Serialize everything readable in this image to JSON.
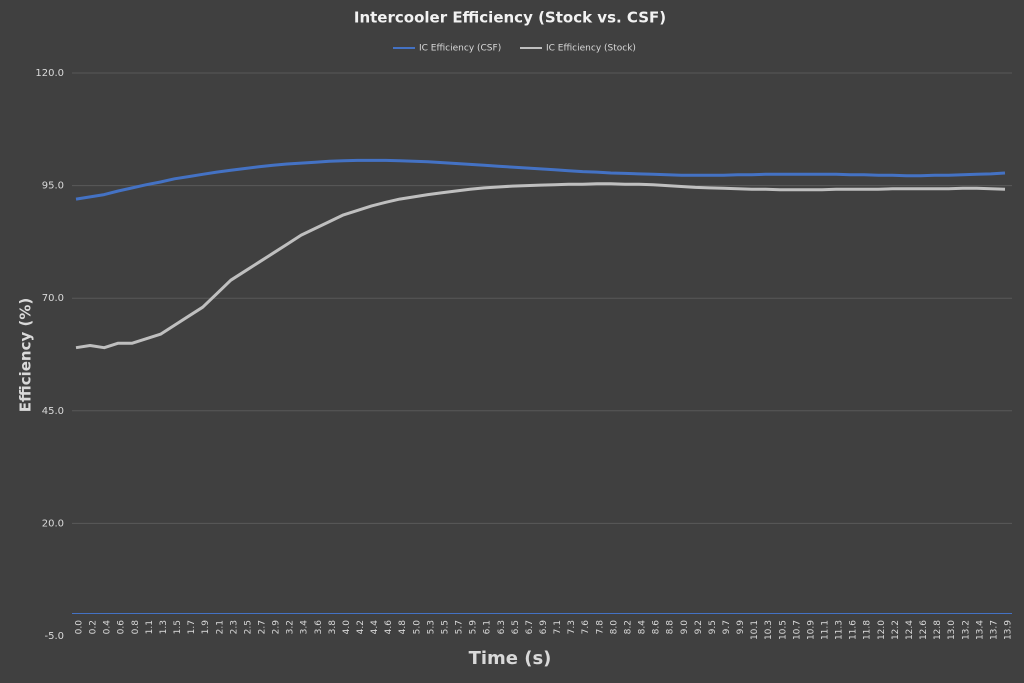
{
  "chart_data": {
    "type": "line",
    "title": "Intercooler Efficiency (Stock vs. CSF)",
    "x_label": "Time (s)",
    "y_label": "Efficiency (%)",
    "categories": [
      "0.0",
      "0.2",
      "0.4",
      "0.6",
      "0.8",
      "1.1",
      "1.3",
      "1.5",
      "1.7",
      "1.9",
      "2.1",
      "2.3",
      "2.5",
      "2.7",
      "2.9",
      "3.2",
      "3.4",
      "3.6",
      "3.8",
      "4.0",
      "4.2",
      "4.4",
      "4.6",
      "4.8",
      "5.0",
      "5.3",
      "5.5",
      "5.7",
      "5.9",
      "6.1",
      "6.3",
      "6.5",
      "6.7",
      "6.9",
      "7.1",
      "7.3",
      "7.6",
      "7.8",
      "8.0",
      "8.2",
      "8.4",
      "8.6",
      "8.8",
      "9.0",
      "9.2",
      "9.5",
      "9.7",
      "9.9",
      "10.1",
      "10.3",
      "10.5",
      "10.7",
      "10.9",
      "11.1",
      "11.3",
      "11.6",
      "11.8",
      "12.0",
      "12.2",
      "12.4",
      "12.6",
      "12.8",
      "13.0",
      "13.2",
      "13.4",
      "13.7",
      "13.9"
    ],
    "series": [
      {
        "name": "IC Efficiency (CSF)",
        "color": "#4472c4",
        "values": [
          92,
          92.5,
          93,
          93.8,
          94.5,
          95.2,
          95.8,
          96.5,
          97,
          97.5,
          98,
          98.4,
          98.8,
          99.2,
          99.5,
          99.8,
          100,
          100.2,
          100.4,
          100.5,
          100.6,
          100.6,
          100.6,
          100.5,
          100.4,
          100.3,
          100.1,
          99.9,
          99.7,
          99.5,
          99.3,
          99.1,
          98.9,
          98.7,
          98.5,
          98.3,
          98.1,
          98,
          97.8,
          97.7,
          97.6,
          97.5,
          97.4,
          97.3,
          97.3,
          97.3,
          97.3,
          97.4,
          97.4,
          97.5,
          97.5,
          97.5,
          97.5,
          97.5,
          97.5,
          97.4,
          97.4,
          97.3,
          97.3,
          97.2,
          97.2,
          97.3,
          97.3,
          97.4,
          97.5,
          97.6,
          97.8
        ]
      },
      {
        "name": "IC Efficiency (Stock)",
        "color": "#bfbfbf",
        "values": [
          59,
          59.5,
          59,
          60,
          60,
          61,
          62,
          64,
          66,
          68,
          71,
          74,
          76,
          78,
          80,
          82,
          84,
          85.5,
          87,
          88.5,
          89.5,
          90.5,
          91.3,
          92,
          92.5,
          93,
          93.4,
          93.8,
          94.2,
          94.5,
          94.7,
          94.9,
          95,
          95.1,
          95.2,
          95.3,
          95.3,
          95.4,
          95.4,
          95.3,
          95.3,
          95.2,
          95,
          94.8,
          94.6,
          94.5,
          94.4,
          94.3,
          94.2,
          94.2,
          94.1,
          94.1,
          94.1,
          94.1,
          94.2,
          94.2,
          94.2,
          94.2,
          94.3,
          94.3,
          94.3,
          94.3,
          94.3,
          94.4,
          94.4,
          94.3,
          94.2
        ]
      }
    ],
    "ylim": [
      -5,
      120
    ],
    "yticks": [
      {
        "value": -5,
        "label": "-5.0"
      },
      {
        "value": 20,
        "label": "20.0"
      },
      {
        "value": 45,
        "label": "45.0"
      },
      {
        "value": 70,
        "label": "70.0"
      },
      {
        "value": 95,
        "label": "95.0"
      },
      {
        "value": 120,
        "label": "120.0"
      }
    ],
    "grid": true
  }
}
